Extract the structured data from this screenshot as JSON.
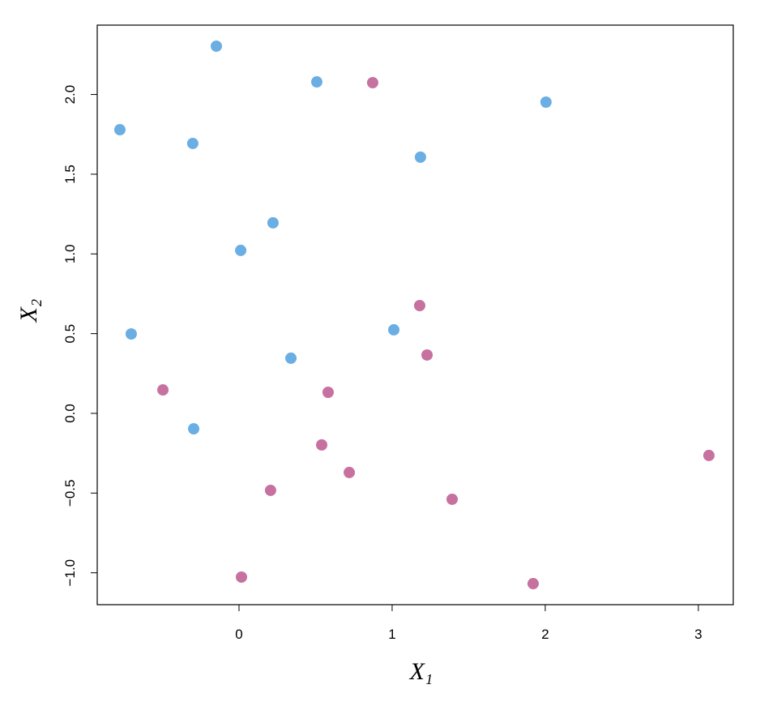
{
  "chart_data": {
    "type": "scatter",
    "x_label": "X₁",
    "y_label": "X₂",
    "xlim": [
      -0.926,
      3.228
    ],
    "ylim": [
      -1.2,
      2.435
    ],
    "xticks": [
      0,
      1,
      2,
      3
    ],
    "yticks": [
      {
        "value": -1,
        "label": "−1.0"
      },
      {
        "value": -0.5,
        "label": "−0.5"
      },
      {
        "value": 0,
        "label": "0.0"
      },
      {
        "value": 0.5,
        "label": "0.5"
      },
      {
        "value": 1,
        "label": "1.0"
      },
      {
        "value": 1.5,
        "label": "1.5"
      },
      {
        "value": 2,
        "label": "2.0"
      }
    ],
    "series": [
      {
        "color": "#6aaee3",
        "x": [
          -0.148,
          0.508,
          -0.778,
          -0.302,
          2.005,
          1.185,
          0.222,
          0.011,
          -0.704,
          1.011,
          0.339,
          -0.296
        ],
        "values": [
          2.303,
          2.079,
          1.779,
          1.693,
          1.952,
          1.607,
          1.195,
          1.022,
          0.498,
          0.524,
          0.346,
          -0.097
        ]
      },
      {
        "color": "#c6719f",
        "x": [
          0.873,
          1.18,
          1.228,
          -0.497,
          0.582,
          0.54,
          0.72,
          0.206,
          1.392,
          3.069,
          0.016,
          1.921
        ],
        "values": [
          2.074,
          0.676,
          0.366,
          0.147,
          0.132,
          -0.198,
          -0.371,
          -0.483,
          -0.539,
          -0.264,
          -1.027,
          -1.068
        ]
      }
    ]
  }
}
